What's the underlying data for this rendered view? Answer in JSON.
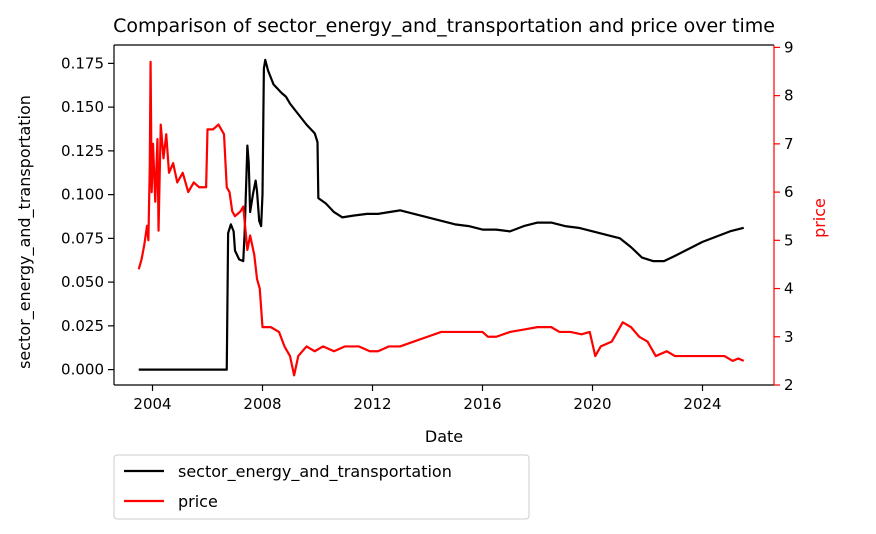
{
  "chart_data": {
    "type": "line",
    "title": "Comparison of sector_energy_and_transportation and price over time",
    "xlabel": "Date",
    "ylabel_left": "sector_energy_and_transportation",
    "ylabel_right": "price",
    "xlim": [
      2002.6,
      2026.6
    ],
    "ylim_left": [
      -0.0088,
      0.1855
    ],
    "ylim_right": [
      2.0,
      9.05
    ],
    "x_ticks": [
      2004,
      2008,
      2012,
      2016,
      2020,
      2024
    ],
    "x_tick_labels": [
      "2004",
      "2008",
      "2012",
      "2016",
      "2020",
      "2024"
    ],
    "y_left_ticks": [
      0.0,
      0.025,
      0.05,
      0.075,
      0.1,
      0.125,
      0.15,
      0.175
    ],
    "y_left_tick_labels": [
      "0.000",
      "0.025",
      "0.050",
      "0.075",
      "0.100",
      "0.125",
      "0.150",
      "0.175"
    ],
    "y_right_ticks": [
      2,
      3,
      4,
      5,
      6,
      7,
      8,
      9
    ],
    "y_right_tick_labels": [
      "2",
      "3",
      "4",
      "5",
      "6",
      "7",
      "8",
      "9"
    ],
    "grid": false,
    "legend_position": "below-left",
    "colors": {
      "left_series": "#000000",
      "right_series": "#ff0000",
      "right_axis": "#ff0000"
    },
    "series": [
      {
        "name": "sector_energy_and_transportation",
        "axis": "left",
        "color": "#000000",
        "points": [
          [
            2003.5,
            0.0
          ],
          [
            2006.7,
            0.0
          ],
          [
            2006.75,
            0.078
          ],
          [
            2006.85,
            0.083
          ],
          [
            2006.95,
            0.079
          ],
          [
            2007.0,
            0.068
          ],
          [
            2007.15,
            0.063
          ],
          [
            2007.3,
            0.062
          ],
          [
            2007.35,
            0.078
          ],
          [
            2007.45,
            0.128
          ],
          [
            2007.5,
            0.118
          ],
          [
            2007.55,
            0.09
          ],
          [
            2007.65,
            0.1
          ],
          [
            2007.75,
            0.108
          ],
          [
            2007.8,
            0.102
          ],
          [
            2007.88,
            0.085
          ],
          [
            2007.95,
            0.082
          ],
          [
            2008.0,
            0.1
          ],
          [
            2008.05,
            0.172
          ],
          [
            2008.1,
            0.177
          ],
          [
            2008.2,
            0.171
          ],
          [
            2008.4,
            0.163
          ],
          [
            2008.7,
            0.158
          ],
          [
            2008.85,
            0.156
          ],
          [
            2009.0,
            0.152
          ],
          [
            2009.3,
            0.146
          ],
          [
            2009.6,
            0.14
          ],
          [
            2009.9,
            0.135
          ],
          [
            2010.0,
            0.13
          ],
          [
            2010.03,
            0.098
          ],
          [
            2010.3,
            0.095
          ],
          [
            2010.6,
            0.09
          ],
          [
            2010.9,
            0.087
          ],
          [
            2011.3,
            0.088
          ],
          [
            2011.8,
            0.089
          ],
          [
            2012.2,
            0.089
          ],
          [
            2012.6,
            0.09
          ],
          [
            2013.0,
            0.091
          ],
          [
            2013.5,
            0.089
          ],
          [
            2014.0,
            0.087
          ],
          [
            2014.5,
            0.085
          ],
          [
            2015.0,
            0.083
          ],
          [
            2015.5,
            0.082
          ],
          [
            2016.0,
            0.08
          ],
          [
            2016.5,
            0.08
          ],
          [
            2017.0,
            0.079
          ],
          [
            2017.5,
            0.082
          ],
          [
            2018.0,
            0.084
          ],
          [
            2018.5,
            0.084
          ],
          [
            2019.0,
            0.082
          ],
          [
            2019.5,
            0.081
          ],
          [
            2020.0,
            0.079
          ],
          [
            2020.5,
            0.077
          ],
          [
            2021.0,
            0.075
          ],
          [
            2021.4,
            0.07
          ],
          [
            2021.8,
            0.064
          ],
          [
            2022.2,
            0.062
          ],
          [
            2022.6,
            0.062
          ],
          [
            2023.0,
            0.065
          ],
          [
            2023.5,
            0.069
          ],
          [
            2024.0,
            0.073
          ],
          [
            2024.5,
            0.076
          ],
          [
            2025.0,
            0.079
          ],
          [
            2025.5,
            0.081
          ]
        ]
      },
      {
        "name": "price",
        "axis": "right",
        "color": "#ff0000",
        "points": [
          [
            2003.5,
            4.4
          ],
          [
            2003.6,
            4.6
          ],
          [
            2003.7,
            4.9
          ],
          [
            2003.8,
            5.3
          ],
          [
            2003.85,
            5.0
          ],
          [
            2003.9,
            6.5
          ],
          [
            2003.93,
            8.7
          ],
          [
            2003.97,
            6.0
          ],
          [
            2004.02,
            7.0
          ],
          [
            2004.1,
            5.8
          ],
          [
            2004.18,
            7.1
          ],
          [
            2004.22,
            5.2
          ],
          [
            2004.3,
            7.4
          ],
          [
            2004.4,
            6.7
          ],
          [
            2004.5,
            7.2
          ],
          [
            2004.6,
            6.4
          ],
          [
            2004.75,
            6.6
          ],
          [
            2004.9,
            6.2
          ],
          [
            2005.1,
            6.4
          ],
          [
            2005.3,
            6.0
          ],
          [
            2005.5,
            6.2
          ],
          [
            2005.7,
            6.1
          ],
          [
            2005.95,
            6.1
          ],
          [
            2006.0,
            7.3
          ],
          [
            2006.2,
            7.3
          ],
          [
            2006.4,
            7.4
          ],
          [
            2006.6,
            7.2
          ],
          [
            2006.7,
            6.1
          ],
          [
            2006.8,
            6.0
          ],
          [
            2006.9,
            5.6
          ],
          [
            2007.0,
            5.5
          ],
          [
            2007.2,
            5.6
          ],
          [
            2007.3,
            5.7
          ],
          [
            2007.45,
            4.8
          ],
          [
            2007.55,
            5.1
          ],
          [
            2007.7,
            4.7
          ],
          [
            2007.8,
            4.2
          ],
          [
            2007.9,
            4.0
          ],
          [
            2008.0,
            3.2
          ],
          [
            2008.3,
            3.2
          ],
          [
            2008.6,
            3.1
          ],
          [
            2008.8,
            2.8
          ],
          [
            2009.0,
            2.6
          ],
          [
            2009.15,
            2.2
          ],
          [
            2009.3,
            2.6
          ],
          [
            2009.6,
            2.8
          ],
          [
            2009.9,
            2.7
          ],
          [
            2010.2,
            2.8
          ],
          [
            2010.6,
            2.7
          ],
          [
            2011.0,
            2.8
          ],
          [
            2011.5,
            2.8
          ],
          [
            2011.9,
            2.7
          ],
          [
            2012.2,
            2.7
          ],
          [
            2012.6,
            2.8
          ],
          [
            2013.0,
            2.8
          ],
          [
            2013.5,
            2.9
          ],
          [
            2014.0,
            3.0
          ],
          [
            2014.5,
            3.1
          ],
          [
            2015.0,
            3.1
          ],
          [
            2015.5,
            3.1
          ],
          [
            2016.0,
            3.1
          ],
          [
            2016.2,
            3.0
          ],
          [
            2016.5,
            3.0
          ],
          [
            2017.0,
            3.1
          ],
          [
            2017.5,
            3.15
          ],
          [
            2018.0,
            3.2
          ],
          [
            2018.5,
            3.2
          ],
          [
            2018.8,
            3.1
          ],
          [
            2019.2,
            3.1
          ],
          [
            2019.6,
            3.05
          ],
          [
            2019.9,
            3.1
          ],
          [
            2020.1,
            2.6
          ],
          [
            2020.3,
            2.8
          ],
          [
            2020.7,
            2.9
          ],
          [
            2020.9,
            3.1
          ],
          [
            2021.1,
            3.3
          ],
          [
            2021.4,
            3.2
          ],
          [
            2021.7,
            3.0
          ],
          [
            2022.0,
            2.9
          ],
          [
            2022.3,
            2.6
          ],
          [
            2022.7,
            2.7
          ],
          [
            2023.0,
            2.6
          ],
          [
            2023.4,
            2.6
          ],
          [
            2023.9,
            2.6
          ],
          [
            2024.3,
            2.6
          ],
          [
            2024.8,
            2.6
          ],
          [
            2025.1,
            2.5
          ],
          [
            2025.3,
            2.55
          ],
          [
            2025.5,
            2.5
          ]
        ]
      }
    ]
  }
}
